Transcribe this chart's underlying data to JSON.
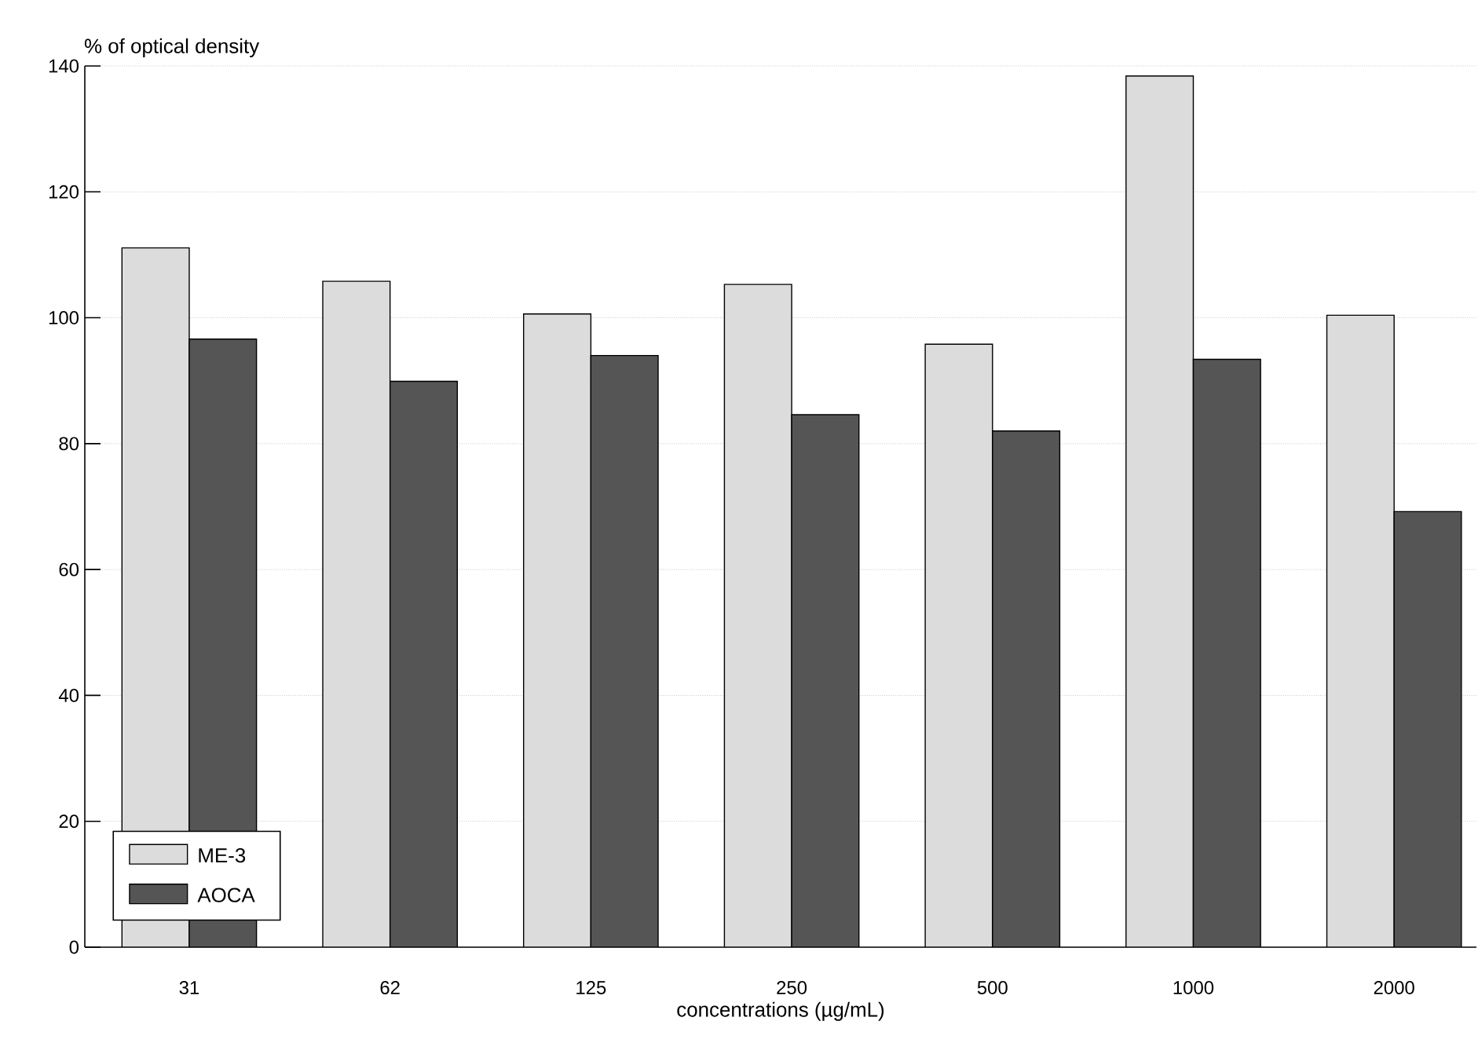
{
  "chart_data": {
    "type": "bar",
    "xlabel": "concentrations (µg/mL)",
    "ylabel": "% of optical density",
    "categories": [
      "31",
      "62",
      "125",
      "250",
      "500",
      "1000",
      "2000"
    ],
    "series": [
      {
        "name": "ME-3",
        "color": "#dcdcdc",
        "values": [
          111.1,
          105.8,
          100.6,
          105.3,
          95.8,
          138.4,
          100.4
        ]
      },
      {
        "name": "AOCA",
        "color": "#555555",
        "values": [
          96.6,
          89.9,
          94.0,
          84.6,
          82.0,
          93.4,
          69.2
        ]
      }
    ],
    "ylim": [
      0,
      140
    ],
    "yticks": [
      0,
      20,
      40,
      60,
      80,
      100,
      120,
      140
    ],
    "grid": "y",
    "legend": "bottom left"
  }
}
